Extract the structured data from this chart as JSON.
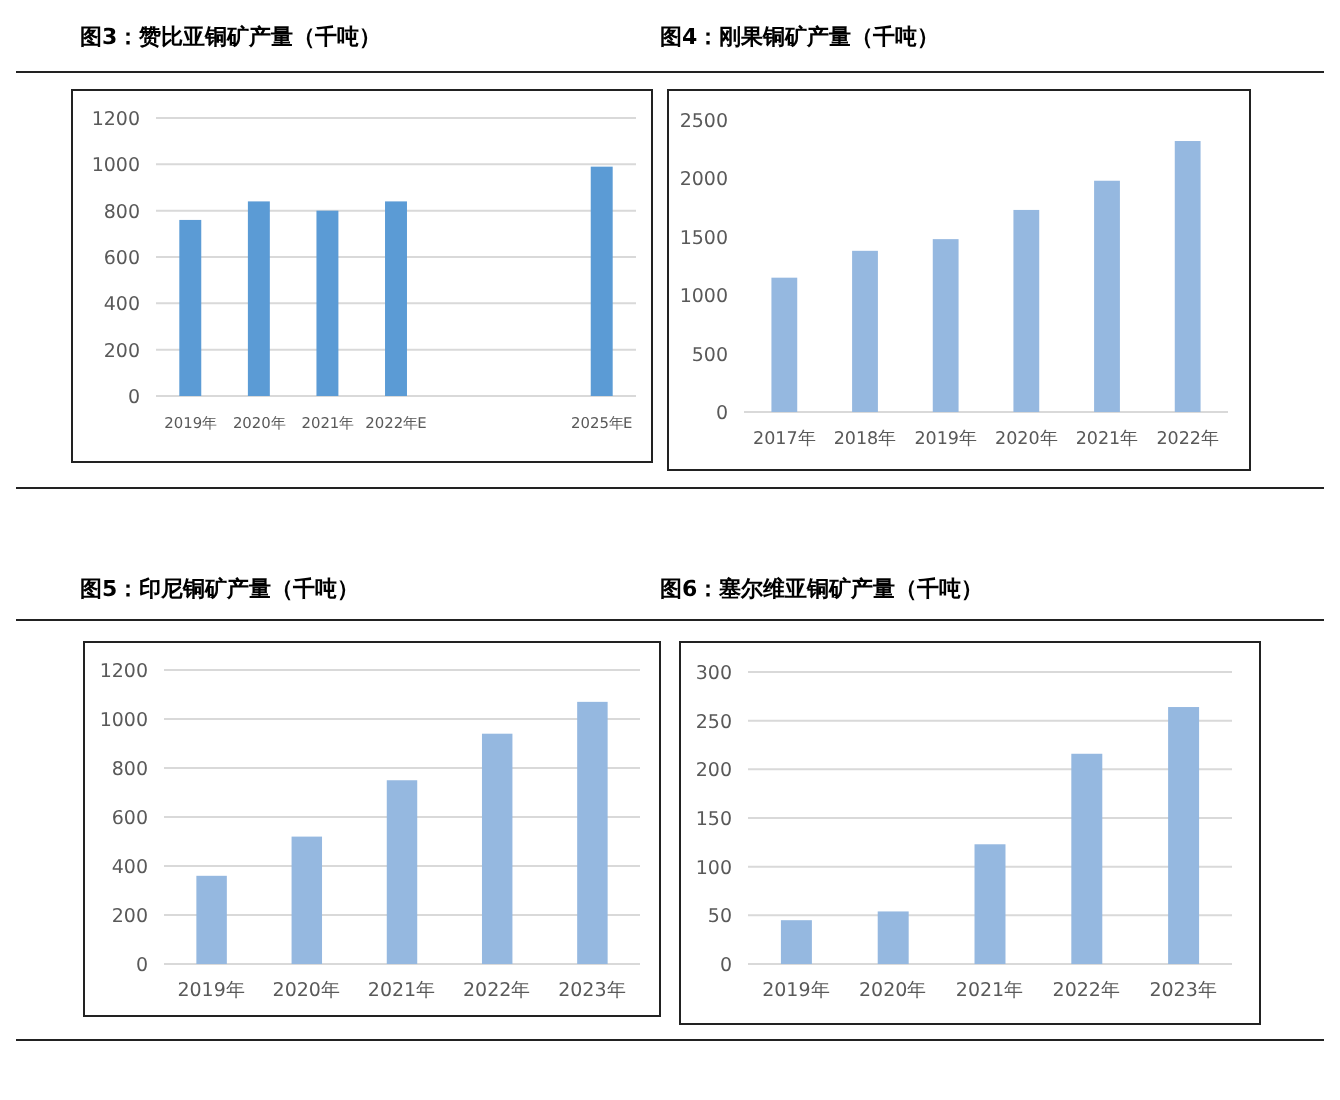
{
  "chart_data": [
    {
      "type": "bar",
      "title": "图3：赞比亚铜矿产量（千吨）",
      "categories": [
        "2019年",
        "2020年",
        "2021年",
        "2022年E",
        null,
        null,
        "2025年E"
      ],
      "values": [
        760,
        840,
        800,
        840,
        null,
        null,
        990
      ],
      "color": "#5b9bd5",
      "ylim": [
        0,
        1200
      ],
      "yticks": [
        0,
        200,
        400,
        600,
        800,
        1000,
        1200
      ],
      "grid": "y"
    },
    {
      "type": "bar",
      "title": "图4：刚果铜矿产量（千吨）",
      "categories": [
        "2017年",
        "2018年",
        "2019年",
        "2020年",
        "2021年",
        "2022年"
      ],
      "values": [
        1150,
        1380,
        1480,
        1730,
        1980,
        2320
      ],
      "color": "#95b8e0",
      "ylim": [
        0,
        2500
      ],
      "yticks": [
        0,
        500,
        1000,
        1500,
        2000,
        2500
      ],
      "grid": false
    },
    {
      "type": "bar",
      "title": "图5：印尼铜矿产量（千吨）",
      "categories": [
        "2019年",
        "2020年",
        "2021年",
        "2022年",
        "2023年"
      ],
      "values": [
        360,
        520,
        750,
        940,
        1070
      ],
      "color": "#95b8e0",
      "ylim": [
        0,
        1200
      ],
      "yticks": [
        0,
        200,
        400,
        600,
        800,
        1000,
        1200
      ],
      "grid": "y"
    },
    {
      "type": "bar",
      "title": "图6：塞尔维亚铜矿产量（千吨）",
      "categories": [
        "2019年",
        "2020年",
        "2021年",
        "2022年",
        "2023年"
      ],
      "values": [
        45,
        54,
        123,
        216,
        264
      ],
      "color": "#95b8e0",
      "ylim": [
        0,
        300
      ],
      "yticks": [
        0,
        50,
        100,
        150,
        200,
        250,
        300
      ],
      "grid": "y"
    }
  ]
}
